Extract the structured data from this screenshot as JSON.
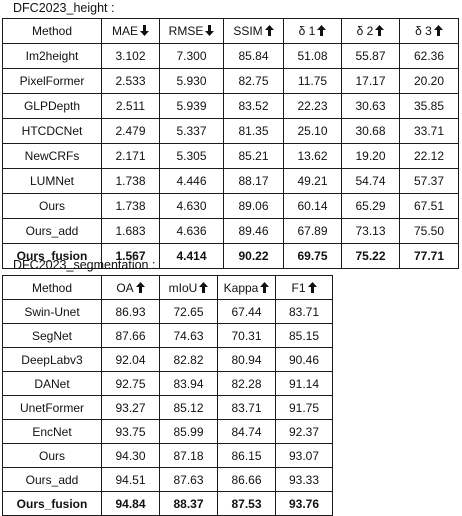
{
  "height_table": {
    "caption": "DFC2023_height :",
    "columns": [
      {
        "label": "Method",
        "arrow": ""
      },
      {
        "label": "MAE",
        "arrow": "down"
      },
      {
        "label": "RMSE",
        "arrow": "down"
      },
      {
        "label": "SSIM",
        "arrow": "up"
      },
      {
        "label": "δ 1",
        "arrow": "up"
      },
      {
        "label": "δ 2",
        "arrow": "up"
      },
      {
        "label": "δ 3",
        "arrow": "up"
      }
    ],
    "rows": [
      {
        "method": "Im2height",
        "values": [
          "3.102",
          "7.300",
          "85.84",
          "51.08",
          "55.87",
          "62.36"
        ],
        "bold": false
      },
      {
        "method": "PixelFormer",
        "values": [
          "2.533",
          "5.930",
          "82.75",
          "11.75",
          "17.17",
          "20.20"
        ],
        "bold": false
      },
      {
        "method": "GLPDepth",
        "values": [
          "2.511",
          "5.939",
          "83.52",
          "22.23",
          "30.63",
          "35.85"
        ],
        "bold": false
      },
      {
        "method": "HTCDCNet",
        "values": [
          "2.479",
          "5.337",
          "81.35",
          "25.10",
          "30.68",
          "33.71"
        ],
        "bold": false
      },
      {
        "method": "NewCRFs",
        "values": [
          "2.171",
          "5.305",
          "85.21",
          "13.62",
          "19.20",
          "22.12"
        ],
        "bold": false
      },
      {
        "method": "LUMNet",
        "values": [
          "1.738",
          "4.446",
          "88.17",
          "49.21",
          "54.74",
          "57.37"
        ],
        "bold": false
      },
      {
        "method": "Ours",
        "values": [
          "1.738",
          "4.630",
          "89.06",
          "60.14",
          "65.29",
          "67.51"
        ],
        "bold": false
      },
      {
        "method": "Ours_add",
        "values": [
          "1.683",
          "4.636",
          "89.46",
          "67.89",
          "73.13",
          "75.50"
        ],
        "bold": false
      },
      {
        "method": "Ours_fusion",
        "values": [
          "1.567",
          "4.414",
          "90.22",
          "69.75",
          "75.22",
          "77.71"
        ],
        "bold": true
      }
    ]
  },
  "segmentation_table": {
    "caption": "DFC2023_segmentation :",
    "columns": [
      {
        "label": "Method",
        "arrow": ""
      },
      {
        "label": "OA",
        "arrow": "up"
      },
      {
        "label": "mIoU",
        "arrow": "up"
      },
      {
        "label": "Kappa",
        "arrow": "up"
      },
      {
        "label": "F1",
        "arrow": "up"
      }
    ],
    "rows": [
      {
        "method": "Swin-Unet",
        "values": [
          "86.93",
          "72.65",
          "67.44",
          "83.71"
        ],
        "bold": false
      },
      {
        "method": "SegNet",
        "values": [
          "87.66",
          "74.63",
          "70.31",
          "85.15"
        ],
        "bold": false
      },
      {
        "method": "DeepLabv3",
        "values": [
          "92.04",
          "82.82",
          "80.94",
          "90.46"
        ],
        "bold": false
      },
      {
        "method": "DANet",
        "values": [
          "92.75",
          "83.94",
          "82.28",
          "91.14"
        ],
        "bold": false
      },
      {
        "method": "UnetFormer",
        "values": [
          "93.27",
          "85.12",
          "83.71",
          "91.75"
        ],
        "bold": false
      },
      {
        "method": "EncNet",
        "values": [
          "93.75",
          "85.99",
          "84.74",
          "92.37"
        ],
        "bold": false
      },
      {
        "method": "Ours",
        "values": [
          "94.30",
          "87.18",
          "86.15",
          "93.07"
        ],
        "bold": false
      },
      {
        "method": "Ours_add",
        "values": [
          "94.51",
          "87.63",
          "86.66",
          "93.33"
        ],
        "bold": false
      },
      {
        "method": "Ours_fusion",
        "values": [
          "94.84",
          "88.37",
          "87.53",
          "93.76"
        ],
        "bold": true
      }
    ]
  }
}
